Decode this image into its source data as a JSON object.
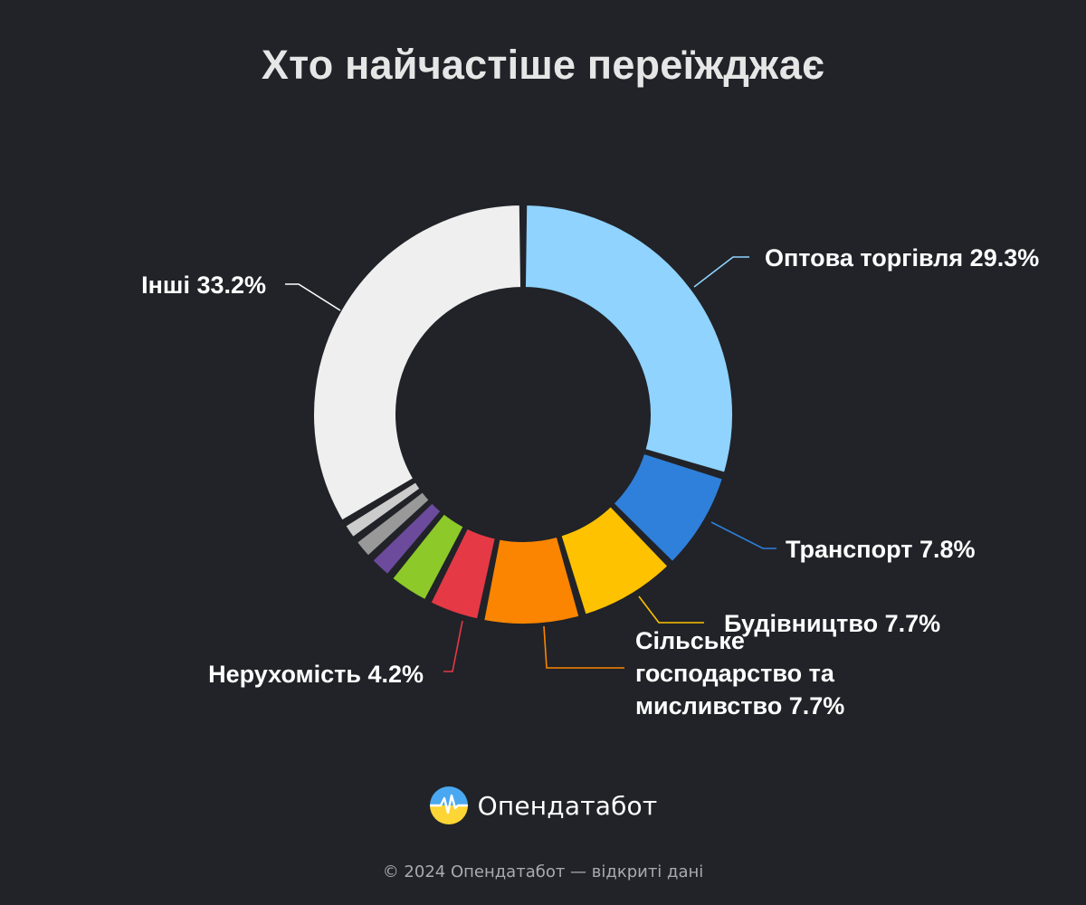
{
  "title": "Хто найчастіше переїжджає",
  "brand": {
    "logo_icon": "opendatabot-logo-icon",
    "name": "Опендатабот"
  },
  "footer": {
    "copyright": "© 2024 Опендатабот — відкриті дані"
  },
  "colors": {
    "background": "#212328",
    "title": "#e6e6e6"
  },
  "chart_data": {
    "type": "pie",
    "variant": "donut",
    "categories": [
      "Оптова торгівля",
      "Транспорт",
      "Будівництво",
      "Сільське господарство та мисливство",
      "Нерухомість",
      "",
      "",
      "",
      "",
      "Інші"
    ],
    "values": [
      29.3,
      7.8,
      7.7,
      7.7,
      4.2,
      3.4,
      2.0,
      1.8,
      1.5,
      33.2
    ],
    "colors": [
      "#8fd3fe",
      "#2f80da",
      "#fec200",
      "#fb8500",
      "#e63946",
      "#8cc929",
      "#6c4a9c",
      "#999999",
      "#cccccc",
      "#efefef"
    ],
    "labels": [
      {
        "text": "Оптова торгівля 29.3%",
        "lines": [
          "Оптова торгівля 29.3%"
        ]
      },
      {
        "text": "Транспорт 7.8%",
        "lines": [
          "Транспорт 7.8%"
        ]
      },
      {
        "text": "Будівництво 7.7%",
        "lines": [
          "Будівництво 7.7%"
        ]
      },
      {
        "text": "Сільське господарство та мисливство 7.7%",
        "lines": [
          "Сільське",
          "господарство та",
          "мисливство 7.7%"
        ]
      },
      {
        "text": "Нерухомість 4.2%",
        "lines": [
          "Нерухомість 4.2%"
        ]
      },
      null,
      null,
      null,
      null,
      {
        "text": "Інші 33.2%",
        "lines": [
          "Інші 33.2%"
        ]
      }
    ],
    "unit": "%",
    "legend": "none"
  }
}
